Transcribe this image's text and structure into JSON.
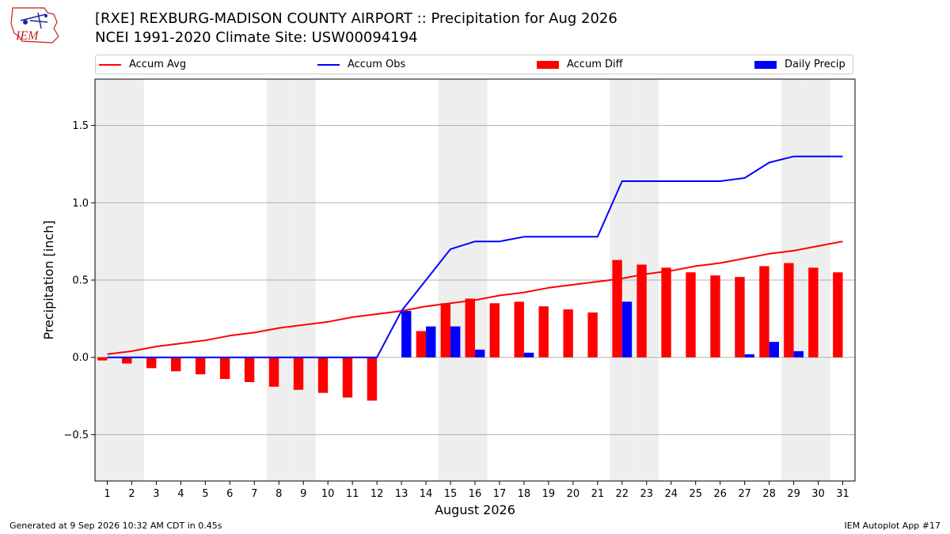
{
  "header": {
    "title_line1": "[RXE] REXBURG-MADISON COUNTY AIRPORT :: Precipitation for Aug 2026",
    "title_line2": "NCEI 1991-2020 Climate Site: USW00094194",
    "logo_text": "IEM"
  },
  "footer": {
    "generated": "Generated at 9 Sep 2026 10:32 AM CDT in 0.45s",
    "app": "IEM Autoplot App #17"
  },
  "colors": {
    "accum_avg": "#ff0000",
    "accum_obs": "#0000ff",
    "accum_diff": "#ff0000",
    "daily_precip": "#0000ff",
    "weekend_band": "#eeeeee",
    "grid": "#b0b0b0"
  },
  "chart_data": {
    "type": "bar",
    "xlabel": "August 2026",
    "ylabel": "Precipitation [inch]",
    "ylim": [
      -0.8,
      1.8
    ],
    "yticks": [
      -0.5,
      0.0,
      0.5,
      1.0,
      1.5
    ],
    "ytick_labels": [
      "−0.5",
      "0.0",
      "0.5",
      "1.0",
      "1.5"
    ],
    "grid": "horizontal",
    "legend_position": "top",
    "x": [
      1,
      2,
      3,
      4,
      5,
      6,
      7,
      8,
      9,
      10,
      11,
      12,
      13,
      14,
      15,
      16,
      17,
      18,
      19,
      20,
      21,
      22,
      23,
      24,
      25,
      26,
      27,
      28,
      29,
      30,
      31
    ],
    "weekend_days": [
      1,
      2,
      8,
      9,
      15,
      16,
      22,
      23,
      29,
      30
    ],
    "series": [
      {
        "name": "Accum Avg",
        "kind": "line",
        "values": [
          0.02,
          0.04,
          0.07,
          0.09,
          0.11,
          0.14,
          0.16,
          0.19,
          0.21,
          0.23,
          0.26,
          0.28,
          0.3,
          0.33,
          0.35,
          0.37,
          0.4,
          0.42,
          0.45,
          0.47,
          0.49,
          0.51,
          0.54,
          0.56,
          0.59,
          0.61,
          0.64,
          0.67,
          0.69,
          0.72,
          0.75
        ]
      },
      {
        "name": "Accum Obs",
        "kind": "line",
        "values": [
          0.0,
          0.0,
          0.0,
          0.0,
          0.0,
          0.0,
          0.0,
          0.0,
          0.0,
          0.0,
          0.0,
          0.0,
          0.3,
          0.5,
          0.7,
          0.75,
          0.75,
          0.78,
          0.78,
          0.78,
          0.78,
          1.14,
          1.14,
          1.14,
          1.14,
          1.14,
          1.16,
          1.26,
          1.3,
          1.3,
          1.3
        ]
      },
      {
        "name": "Accum Diff",
        "kind": "bar",
        "values": [
          -0.02,
          -0.04,
          -0.07,
          -0.09,
          -0.11,
          -0.14,
          -0.16,
          -0.19,
          -0.21,
          -0.23,
          -0.26,
          -0.28,
          0.0,
          0.17,
          0.35,
          0.38,
          0.35,
          0.36,
          0.33,
          0.31,
          0.29,
          0.63,
          0.6,
          0.58,
          0.55,
          0.53,
          0.52,
          0.59,
          0.61,
          0.58,
          0.55
        ]
      },
      {
        "name": "Daily Precip",
        "kind": "bar",
        "values": [
          0,
          0,
          0,
          0,
          0,
          0,
          0,
          0,
          0,
          0,
          0,
          0,
          0.3,
          0.2,
          0.2,
          0.05,
          0,
          0.03,
          0,
          0,
          0,
          0.36,
          0,
          0,
          0,
          0,
          0.02,
          0.1,
          0.04,
          0,
          0
        ]
      }
    ]
  }
}
